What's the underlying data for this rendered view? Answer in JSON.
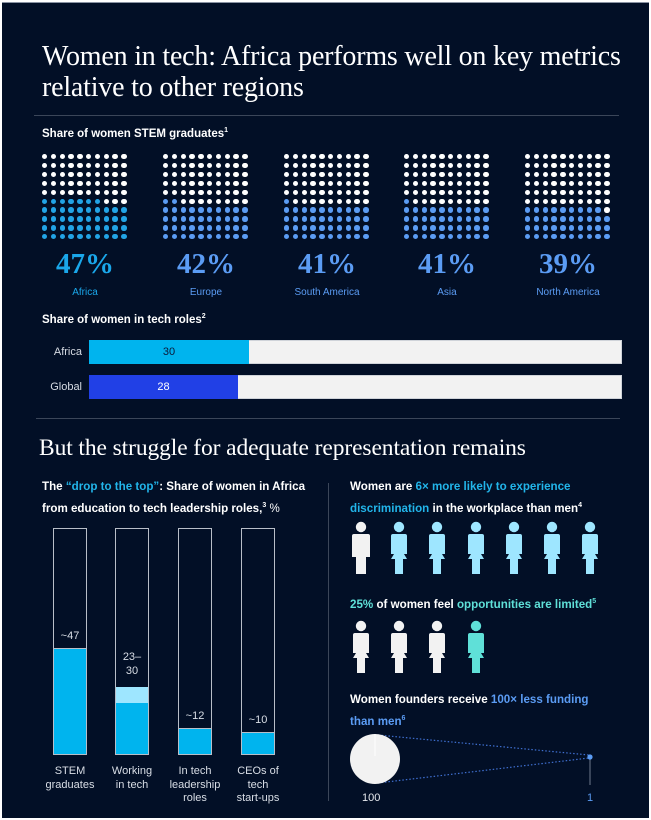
{
  "title": "Women in tech: Africa performs well on key metrics relative to other regions",
  "stem_graduates": {
    "label": "Share of women STEM graduates",
    "footnote": "1",
    "regions": [
      {
        "name": "Africa",
        "value": 47,
        "display": "47%",
        "color": "#22a4e6"
      },
      {
        "name": "Europe",
        "value": 42,
        "display": "42%",
        "color": "#5b9cf4"
      },
      {
        "name": "South America",
        "value": 41,
        "display": "41%",
        "color": "#5b9cf4"
      },
      {
        "name": "Asia",
        "value": 41,
        "display": "41%",
        "color": "#5b9cf4"
      },
      {
        "name": "North America",
        "value": 39,
        "display": "39%",
        "color": "#5b9cf4"
      }
    ]
  },
  "tech_roles": {
    "label": "Share of women in tech roles",
    "footnote": "2",
    "bars": [
      {
        "name": "Africa",
        "value": 30,
        "display": "30",
        "color": "#00b4ee"
      },
      {
        "name": "Global",
        "value": 28,
        "display": "28",
        "color": "#2140e6"
      }
    ],
    "max": 100
  },
  "subtitle": "But the struggle for adequate representation remains",
  "drop_to_top": {
    "intro": "The ",
    "highlight": "“drop to the top”",
    "rest": ": Share of women in Africa from education to tech leadership roles,",
    "footnote": "3",
    "unit": " %",
    "max": 100,
    "bars": [
      {
        "category": "STEM graduates",
        "display": "~47",
        "value": 47
      },
      {
        "category": "Working in tech",
        "display": "23– 30",
        "value_low": 23,
        "value_high": 30
      },
      {
        "category": "In tech leadership roles",
        "display": "~12",
        "value": 12
      },
      {
        "category": "CEOs of tech start-ups",
        "display": "~10",
        "value": 10
      }
    ]
  },
  "discrimination": {
    "pre": "Women are ",
    "highlight": "6× more likely to experience discrimination",
    "post": " in the workplace than men",
    "footnote": "4",
    "figures": [
      {
        "type": "man",
        "color": "#f2f2f2"
      },
      {
        "type": "woman",
        "color": "#9ee6ff"
      },
      {
        "type": "woman",
        "color": "#9ee6ff"
      },
      {
        "type": "woman",
        "color": "#9ee6ff"
      },
      {
        "type": "woman",
        "color": "#9ee6ff"
      },
      {
        "type": "woman",
        "color": "#9ee6ff"
      },
      {
        "type": "woman",
        "color": "#9ee6ff"
      }
    ]
  },
  "opportunities": {
    "highlight1": "25%",
    "mid": " of women feel ",
    "highlight2": "opportunities are limited",
    "footnote": "5",
    "figures": [
      {
        "type": "woman",
        "color": "#f2f2f2"
      },
      {
        "type": "woman",
        "color": "#f2f2f2"
      },
      {
        "type": "woman",
        "color": "#f2f2f2"
      },
      {
        "type": "woman",
        "color": "#5fe0d8"
      }
    ]
  },
  "funding": {
    "pre": "Women founders receive ",
    "highlight": "100× less funding than men",
    "footnote": "6",
    "men_value": "100",
    "women_value": "1"
  },
  "chart_data": [
    {
      "type": "scatter",
      "title": "Share of women STEM graduates",
      "categories": [
        "Africa",
        "Europe",
        "South America",
        "Asia",
        "North America"
      ],
      "values": [
        47,
        42,
        41,
        41,
        39
      ],
      "unit": "%"
    },
    {
      "type": "bar",
      "title": "Share of women in tech roles",
      "categories": [
        "Africa",
        "Global"
      ],
      "values": [
        30,
        28
      ],
      "ylim": [
        0,
        100
      ]
    },
    {
      "type": "bar",
      "title": "The “drop to the top”: Share of women in Africa from education to tech leadership roles, %",
      "categories": [
        "STEM graduates",
        "Working in tech",
        "In tech leadership roles",
        "CEOs of tech start-ups"
      ],
      "values": [
        47,
        [
          23,
          30
        ],
        12,
        10
      ],
      "ylim": [
        0,
        100
      ]
    }
  ]
}
